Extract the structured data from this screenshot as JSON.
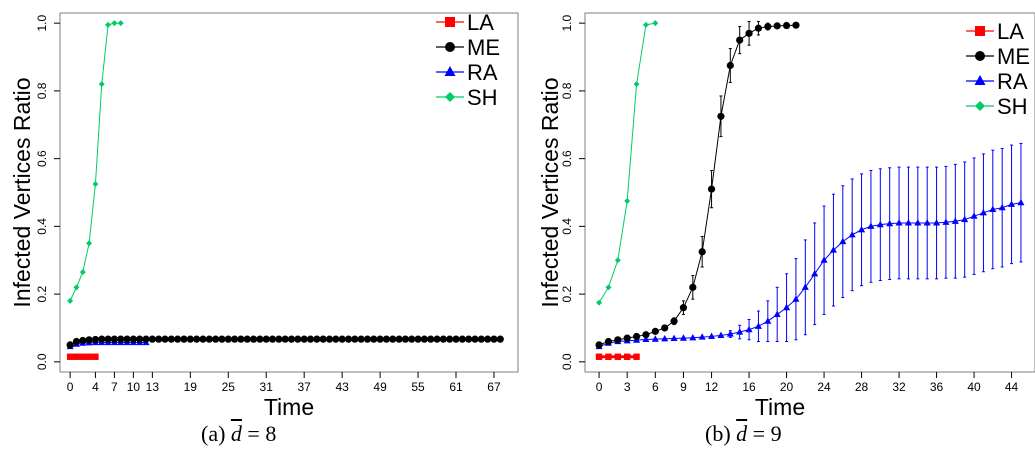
{
  "captions": [
    {
      "label": "(a)",
      "var": "d",
      "rest": " = 8"
    },
    {
      "label": "(b)",
      "var": "d",
      "rest": " = 9"
    }
  ],
  "chart_data": [
    {
      "type": "line",
      "xlabel": "Time",
      "ylabel": "Infected Vertices Ratio",
      "xlim": [
        -1.6,
        70.8
      ],
      "ylim": [
        -0.03,
        1.03
      ],
      "xticks": [
        0,
        4,
        7,
        10,
        13,
        19,
        25,
        31,
        37,
        43,
        49,
        55,
        61,
        67
      ],
      "xtick_labels": [
        "0",
        "4",
        "7",
        "10",
        "13",
        "19",
        "25",
        "31",
        "37",
        "43",
        "49",
        "55",
        "61",
        "67"
      ],
      "yticks": [
        0.0,
        0.2,
        0.4,
        0.6,
        0.8,
        1.0
      ],
      "ytick_labels": [
        "0.0",
        "0.2",
        "0.4",
        "0.6",
        "0.8",
        "1.0"
      ],
      "grid": false,
      "legend_position": "top-right",
      "series": [
        {
          "name": "LA",
          "color": "#ff0000",
          "marker": "square",
          "x": [
            0,
            1,
            2,
            3,
            4
          ],
          "y": [
            0.015,
            0.015,
            0.015,
            0.015,
            0.015
          ]
        },
        {
          "name": "ME",
          "color": "#000000",
          "marker": "circle",
          "x": [
            0,
            1,
            2,
            3,
            4,
            5,
            6,
            7,
            8,
            9,
            10,
            11,
            12,
            13,
            14,
            15,
            16,
            17,
            18,
            19,
            20,
            21,
            22,
            23,
            24,
            25,
            26,
            27,
            28,
            29,
            30,
            31,
            32,
            33,
            34,
            35,
            36,
            37,
            38,
            39,
            40,
            41,
            42,
            43,
            44,
            45,
            46,
            47,
            48,
            49,
            50,
            51,
            52,
            53,
            54,
            55,
            56,
            57,
            58,
            59,
            60,
            61,
            62,
            63,
            64,
            65,
            66,
            67,
            68
          ],
          "y": [
            0.05,
            0.06,
            0.063,
            0.065,
            0.066,
            0.067,
            0.067,
            0.067,
            0.067,
            0.067,
            0.067,
            0.067,
            0.067,
            0.067,
            0.067,
            0.067,
            0.067,
            0.067,
            0.067,
            0.067,
            0.067,
            0.067,
            0.067,
            0.067,
            0.067,
            0.067,
            0.067,
            0.067,
            0.067,
            0.067,
            0.067,
            0.067,
            0.067,
            0.067,
            0.067,
            0.067,
            0.067,
            0.067,
            0.067,
            0.067,
            0.067,
            0.067,
            0.067,
            0.067,
            0.067,
            0.067,
            0.067,
            0.067,
            0.067,
            0.067,
            0.067,
            0.067,
            0.067,
            0.067,
            0.067,
            0.067,
            0.067,
            0.067,
            0.067,
            0.067,
            0.067,
            0.067,
            0.067,
            0.067,
            0.067,
            0.067,
            0.067,
            0.067,
            0.067
          ]
        },
        {
          "name": "RA",
          "color": "#0000ff",
          "marker": "triangle",
          "x": [
            0,
            1,
            2,
            3,
            4,
            5,
            6,
            7,
            8,
            9,
            10,
            11,
            12
          ],
          "y": [
            0.045,
            0.052,
            0.055,
            0.056,
            0.057,
            0.057,
            0.057,
            0.057,
            0.057,
            0.057,
            0.057,
            0.057,
            0.057
          ]
        },
        {
          "name": "SH",
          "color": "#00cc66",
          "marker": "diamond",
          "x": [
            0,
            1,
            2,
            3,
            4,
            5,
            6,
            7,
            8
          ],
          "y": [
            0.18,
            0.22,
            0.265,
            0.35,
            0.525,
            0.82,
            0.995,
            1.0,
            1.0
          ]
        }
      ]
    },
    {
      "type": "line",
      "xlabel": "Time",
      "ylabel": "Infected Vertices Ratio",
      "xlim": [
        -1.5,
        46.5
      ],
      "ylim": [
        -0.03,
        1.03
      ],
      "xticks": [
        0,
        3,
        6,
        9,
        12,
        16,
        20,
        24,
        28,
        32,
        36,
        40,
        44
      ],
      "xtick_labels": [
        "0",
        "3",
        "6",
        "9",
        "12",
        "16",
        "20",
        "24",
        "28",
        "32",
        "36",
        "40",
        "44"
      ],
      "yticks": [
        0.0,
        0.2,
        0.4,
        0.6,
        0.8,
        1.0
      ],
      "ytick_labels": [
        "0.0",
        "0.2",
        "0.4",
        "0.6",
        "0.8",
        "1.0"
      ],
      "grid": false,
      "legend_position": "top-right",
      "series": [
        {
          "name": "LA",
          "color": "#ff0000",
          "marker": "square",
          "x": [
            0,
            1,
            2,
            3,
            4
          ],
          "y": [
            0.015,
            0.015,
            0.015,
            0.015,
            0.015
          ]
        },
        {
          "name": "ME",
          "color": "#000000",
          "marker": "circle",
          "x": [
            0,
            1,
            2,
            3,
            4,
            5,
            6,
            7,
            8,
            9,
            10,
            11,
            12,
            13,
            14,
            15,
            16,
            17,
            18,
            19,
            20,
            21
          ],
          "y": [
            0.05,
            0.06,
            0.065,
            0.07,
            0.075,
            0.08,
            0.09,
            0.1,
            0.12,
            0.16,
            0.22,
            0.325,
            0.51,
            0.725,
            0.875,
            0.95,
            0.97,
            0.985,
            0.99,
            0.992,
            0.993,
            0.994
          ],
          "err": [
            0,
            0,
            0,
            0,
            0,
            0,
            0,
            0,
            0.01,
            0.02,
            0.035,
            0.045,
            0.055,
            0.06,
            0.05,
            0.04,
            0.035,
            0.02,
            0.01,
            0.005,
            0.003,
            0.002
          ]
        },
        {
          "name": "RA",
          "color": "#0000ff",
          "marker": "triangle",
          "x": [
            0,
            1,
            2,
            3,
            4,
            5,
            6,
            7,
            8,
            9,
            10,
            11,
            12,
            13,
            14,
            15,
            16,
            17,
            18,
            19,
            20,
            21,
            22,
            23,
            24,
            25,
            26,
            27,
            28,
            29,
            30,
            31,
            32,
            33,
            34,
            35,
            36,
            37,
            38,
            39,
            40,
            41,
            42,
            43,
            44,
            45
          ],
          "y": [
            0.045,
            0.055,
            0.06,
            0.062,
            0.064,
            0.066,
            0.067,
            0.068,
            0.069,
            0.07,
            0.071,
            0.073,
            0.075,
            0.078,
            0.082,
            0.088,
            0.095,
            0.105,
            0.12,
            0.14,
            0.16,
            0.185,
            0.22,
            0.26,
            0.3,
            0.33,
            0.355,
            0.375,
            0.39,
            0.4,
            0.405,
            0.408,
            0.41,
            0.41,
            0.41,
            0.41,
            0.41,
            0.412,
            0.415,
            0.42,
            0.43,
            0.44,
            0.45,
            0.455,
            0.465,
            0.47
          ],
          "err": [
            0,
            0,
            0,
            0,
            0,
            0,
            0,
            0,
            0,
            0,
            0,
            0,
            0,
            0,
            0.01,
            0.02,
            0.03,
            0.045,
            0.06,
            0.08,
            0.1,
            0.12,
            0.14,
            0.15,
            0.16,
            0.165,
            0.165,
            0.165,
            0.165,
            0.165,
            0.165,
            0.165,
            0.165,
            0.165,
            0.165,
            0.165,
            0.165,
            0.165,
            0.168,
            0.17,
            0.172,
            0.174,
            0.175,
            0.175,
            0.175,
            0.175
          ]
        },
        {
          "name": "SH",
          "color": "#00cc66",
          "marker": "diamond",
          "x": [
            0,
            1,
            2,
            3,
            4,
            5,
            6
          ],
          "y": [
            0.175,
            0.22,
            0.3,
            0.475,
            0.82,
            0.995,
            1.0
          ]
        }
      ]
    }
  ]
}
